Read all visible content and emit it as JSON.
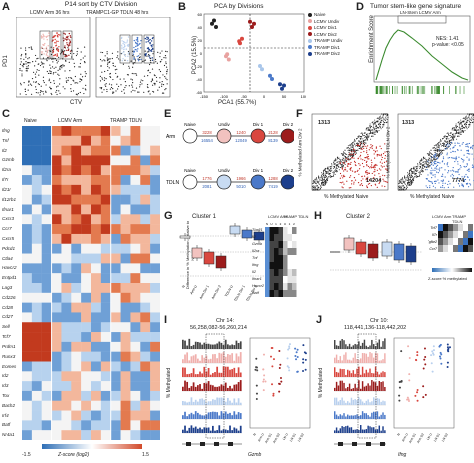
{
  "panels": {
    "A": {
      "letter": "A",
      "title": "P14 sort by CTV Division",
      "left_label": "LCMV Arm 36 hrs",
      "right_label": "TRAMPC1-GP TDLN 48 hrs",
      "ylabel": "PD1",
      "xlabel": "CTV"
    },
    "B": {
      "letter": "B",
      "title": "PCA by Divisions",
      "xlabel": "PCA1 (55.7%)",
      "ylabel": "PCA2 (15.5%)",
      "xticks": [
        "-150",
        "-100",
        "-50",
        "0",
        "50",
        "100"
      ],
      "yticks": [
        "60",
        "40",
        "20",
        "0",
        "-20",
        "-40",
        "-60"
      ],
      "legend": [
        {
          "label": "Naive",
          "color": "#222222"
        },
        {
          "label": "LCMV Undiv",
          "color": "#e8a2a0"
        },
        {
          "label": "LCMV Div1",
          "color": "#d9473f"
        },
        {
          "label": "LCMV Div2",
          "color": "#9c1c1c"
        },
        {
          "label": "TRAMP Undiv",
          "color": "#a9c6ea"
        },
        {
          "label": "TRAMP Div1",
          "color": "#4b79c9"
        },
        {
          "label": "TRAMP Div2",
          "color": "#1d3f8c"
        }
      ]
    },
    "C": {
      "letter": "C",
      "col_groups": [
        "Naive",
        "LCMV Arm",
        "TRAMP TDLN"
      ],
      "genes": [
        "Ifng",
        "Tnf",
        "Il2",
        "Gzmb",
        "Il2ra",
        "Il7r",
        "Il21r",
        "Il12rb1",
        "Ifnar1",
        "Cxcr3",
        "Ccr7",
        "Cxcr5",
        "Pdcd1",
        "Ctla4",
        "Havcr2",
        "Entpd1",
        "Lag3",
        "Cd226",
        "Cd28",
        "Cd27",
        "Sell",
        "Tcf7",
        "Prdm1",
        "Runx3",
        "Eomes",
        "Id2",
        "Id3",
        "Tox",
        "Bach2",
        "Irf4",
        "Batf",
        "Nr4a1"
      ],
      "scale_min": "-1.5",
      "scale_max": "1.5",
      "scale_label": "Z-score (log2)"
    },
    "D": {
      "letter": "D",
      "title": "Tumor stem-like gene signature",
      "subtitle": "LN-Stem LCMV Arm",
      "ylabel": "Enrichment Score",
      "nes": "NES: 1.41",
      "pval": "p-value: <0.05"
    },
    "E": {
      "letter": "E",
      "rows": [
        {
          "label": "Arm",
          "nodes": [
            "Naive",
            "Undiv",
            "Div 1",
            "Div 2"
          ],
          "top": [
            "3228",
            "1240",
            "2128"
          ],
          "bottom": [
            "16554",
            "12049",
            "8139"
          ]
        },
        {
          "label": "TDLN",
          "nodes": [
            "Naive",
            "Undiv",
            "Div 1",
            "Div 2"
          ],
          "top": [
            "1776",
            "1966",
            "1288"
          ],
          "bottom": [
            "2081",
            "5010",
            "7419"
          ]
        }
      ]
    },
    "F": {
      "letter": "F",
      "left": {
        "top": "1313",
        "bottom": "14204",
        "xlabel": "% Methylated Naive",
        "ylabel": "% Methylated Arm Div 2"
      },
      "right": {
        "top": "1313",
        "bottom": "7774",
        "xlabel": "% Methylated Naive",
        "ylabel": "% Methylated TDLN Div 2"
      }
    },
    "G": {
      "letter": "G",
      "title": "Cluster 1",
      "ylabel": "Difference in % Methylation (relative to Naive)",
      "xticks": [
        "N",
        "Arm U",
        "Arm Div 1",
        "Arm Div 2",
        "TDLN U",
        "TDLN Div 1",
        "TDLN Div 2"
      ],
      "heat_header": [
        "LCMV Arm",
        "TRAMP TDLN"
      ],
      "heat_sub": [
        "N",
        "U",
        "1",
        "2",
        "U",
        "1",
        "2"
      ],
      "genes": [
        "Tbx21",
        "Il2",
        "Gzmb",
        "Il2ra",
        "Tnf",
        "Ifng",
        "Il2",
        "Ifnar1",
        "Havcr2",
        "Batf"
      ]
    },
    "H": {
      "letter": "H",
      "title": "Cluster 2",
      "heat_header": [
        "LCMV Arm",
        "TRAMP TDLN"
      ],
      "genes": [
        "Tcf7",
        "Il7r",
        "Tgfbr2",
        "Ccr7"
      ],
      "scale_label": "Z-score % methylated"
    },
    "I": {
      "letter": "I",
      "chr": "Chr 14:",
      "coords": "56,258,082-56,260,214",
      "ylabel": "% Methylated",
      "gene": "Gzmb",
      "xticks": [
        "N",
        "Arm U",
        "Arm D1",
        "Arm D2",
        "LN U",
        "LN D1",
        "LN D2"
      ]
    },
    "J": {
      "letter": "J",
      "chr": "Chr 10:",
      "coords": "118,441,136-118,442,202",
      "ylabel": "% Methylated",
      "gene": "Ifng",
      "xticks": [
        "N",
        "Arm U",
        "Arm D1",
        "Arm D2",
        "LN U",
        "LN D1",
        "LN D2"
      ]
    }
  }
}
